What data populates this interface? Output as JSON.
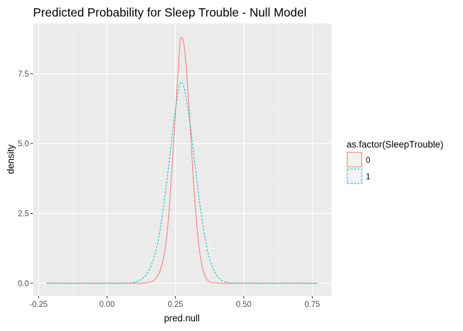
{
  "chart_data": {
    "type": "line",
    "title": "Predicted Probability for Sleep Trouble - Null Model",
    "xlabel": "pred.null",
    "ylabel": "density",
    "xlim": [
      -0.27,
      0.82
    ],
    "ylim": [
      -0.45,
      9.3
    ],
    "x_ticks": [
      -0.25,
      0.0,
      0.25,
      0.5,
      0.75
    ],
    "x_tick_labels": [
      "-0.25",
      "0.00",
      "0.25",
      "0.50",
      "0.75"
    ],
    "y_ticks": [
      0.0,
      2.5,
      5.0,
      7.5
    ],
    "y_tick_labels": [
      "0.0",
      "2.5",
      "5.0",
      "7.5"
    ],
    "grid": true,
    "legend": {
      "title": "as.factor(SleepTrouble)",
      "placement": "right"
    },
    "series": [
      {
        "name": "0",
        "color": "#F8766D",
        "line_style": "solid",
        "x_range": [
          -0.22,
          0.77
        ],
        "peak_x": 0.27,
        "peak_density": 8.8,
        "x": [
          -0.22,
          0.1,
          0.15,
          0.18,
          0.2,
          0.22,
          0.24,
          0.26,
          0.27,
          0.28,
          0.3,
          0.32,
          0.34,
          0.36,
          0.39,
          0.44,
          0.77
        ],
        "values": [
          0.0,
          0.0,
          0.03,
          0.19,
          0.64,
          1.82,
          4.48,
          7.58,
          8.8,
          8.63,
          6.27,
          3.08,
          1.03,
          0.23,
          0.02,
          0.0,
          0.0
        ]
      },
      {
        "name": "1",
        "color": "#00BFC4",
        "line_style": "dashed",
        "x_range": [
          -0.22,
          0.77
        ],
        "peak_x": 0.27,
        "peak_density": 7.2,
        "x": [
          -0.22,
          0.06,
          0.1,
          0.13,
          0.16,
          0.19,
          0.22,
          0.24,
          0.26,
          0.27,
          0.28,
          0.3,
          0.32,
          0.34,
          0.37,
          0.4,
          0.44,
          0.48,
          0.77
        ],
        "values": [
          0.0,
          0.0,
          0.04,
          0.17,
          0.59,
          1.68,
          3.76,
          5.4,
          6.86,
          7.2,
          7.06,
          5.98,
          4.39,
          2.78,
          1.06,
          0.3,
          0.03,
          0.0,
          0.0
        ]
      }
    ]
  }
}
